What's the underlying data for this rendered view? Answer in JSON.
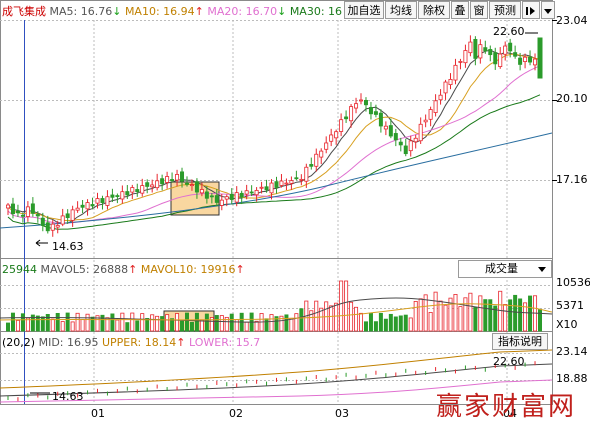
{
  "header": {
    "stock_name": "成飞集成",
    "ma5": "MA5: 16.76",
    "ma10": "MA10: 16.94",
    "ma20": "MA20: 16.70",
    "ma30": "MA30: 16"
  },
  "toolbar": {
    "btn_add": "加自选",
    "btn_ma": "均线",
    "btn_exright": "除权",
    "btn_overlay": "叠",
    "btn_window": "窗",
    "btn_forecast": "预测",
    "icons": [
      "pin-icon",
      "dropdown-icon"
    ]
  },
  "price_panel": {
    "y_labels": [
      "23.04",
      "20.10",
      "17.16"
    ],
    "high_label": "22.60",
    "low_label": "14.63"
  },
  "volume_panel": {
    "prefix": "25944",
    "mavol5": "MAVOL5: 26888",
    "mavol10": "MAVOL10: 19916",
    "selector": "成交量",
    "y_labels": [
      "10536",
      "5371"
    ],
    "unit": "X10"
  },
  "boll_panel": {
    "prefix": "(20,2)",
    "mid": "MID: 16.95",
    "upper": "UPPER: 18.14",
    "lower": "LOWER: 15.7",
    "info_button": "指标说明",
    "y_labels": [
      "23.14",
      "18.88"
    ],
    "high_label": "22.60",
    "low_label": "14.63"
  },
  "x_axis": [
    "01",
    "02",
    "03",
    "04"
  ],
  "watermark": "赢家财富网",
  "colors": {
    "up": "#e8262d",
    "down": "#2b9b2b",
    "ma5": "#4a4a4a",
    "ma10": "#d8a020",
    "ma20": "#e070d0",
    "ma30": "#1a7a1a",
    "ma60": "#2a6ea0",
    "highlight": "#f9d7a0"
  },
  "chart_data": {
    "type": "candlestick",
    "x": [
      "01",
      "02",
      "03",
      "04"
    ],
    "y_axis_labels": [
      23.04,
      20.1,
      17.16
    ],
    "high": 22.6,
    "low": 14.63,
    "ma": {
      "MA5": 16.76,
      "MA10": 16.94,
      "MA20": 16.7
    },
    "volume": {
      "MAVOL5": 26888,
      "MAVOL10": 19916,
      "axis_labels": [
        10536,
        5371
      ],
      "unit": "X10"
    },
    "boll": {
      "MID": 16.95,
      "UPPER": 18.14,
      "axis_labels": [
        23.14,
        18.88
      ]
    }
  }
}
